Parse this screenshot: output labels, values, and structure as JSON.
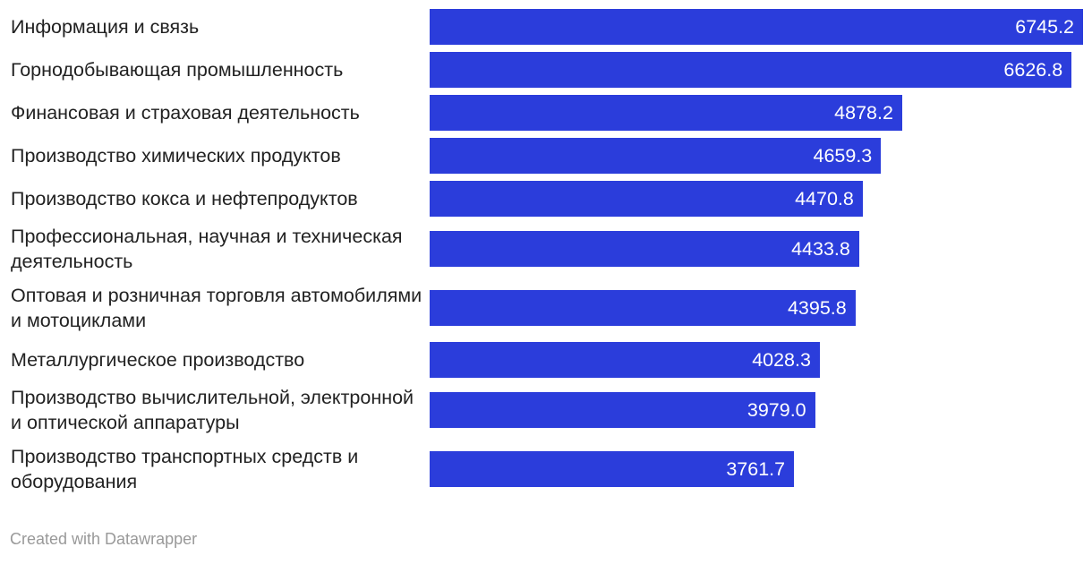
{
  "chart_data": {
    "type": "bar",
    "orientation": "horizontal",
    "categories": [
      "Информация и связь",
      "Горнодобывающая промышленность",
      "Финансовая и страховая деятельность",
      "Производство химических продуктов",
      "Производство кокса и нефтепродуктов",
      "Профессиональная, научная и техническая деятельность",
      "Оптовая и розничная торговля автомобилями и мотоциклами",
      "Металлургическое производство",
      "Производство вычислительной, электронной и оптической аппаратуры",
      "Производство транспортных средств и оборудования"
    ],
    "values": [
      6745.2,
      6626.8,
      4878.2,
      4659.3,
      4470.8,
      4433.8,
      4395.8,
      4028.3,
      3979.0,
      3761.7
    ],
    "value_labels": [
      "6745.2",
      "6626.8",
      "4878.2",
      "4659.3",
      "4470.8",
      "4433.8",
      "4395.8",
      "4028.3",
      "3979.0",
      "3761.7"
    ],
    "xlim": [
      0,
      6745.2
    ],
    "grid": false,
    "bar_color": "#2b3ddb",
    "value_label_color": "#ffffff"
  },
  "footer": {
    "credit": "Created with Datawrapper"
  }
}
